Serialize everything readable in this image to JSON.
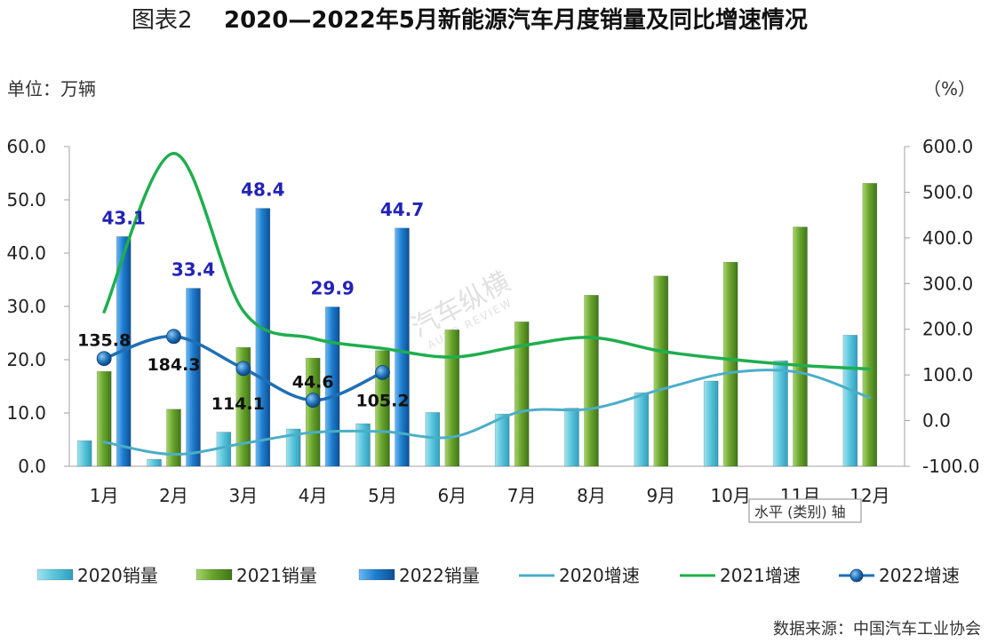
{
  "title": {
    "prefix": "图表2",
    "main": "2020—2022年5月新能源汽车月度销量及同比增速情况"
  },
  "units": {
    "left": "单位：万辆",
    "right": "（%）"
  },
  "source": "数据来源：中国汽车工业协会",
  "watermark": "汽车纵横",
  "watermark_sub": "AUTO REVIEW",
  "tooltip": "水平 (类别) 轴",
  "colors": {
    "sales_2020": "#5cc6dc",
    "sales_2021": "#6aa42e",
    "sales_2022": "#1f7fd0",
    "rate_2020": "#4aaec8",
    "rate_2021": "#1fae4e",
    "rate_2022": "#1f6fb5"
  },
  "chart_data": {
    "type": "bar",
    "categories": [
      "1月",
      "2月",
      "3月",
      "4月",
      "5月",
      "6月",
      "7月",
      "8月",
      "9月",
      "10月",
      "11月",
      "12月"
    ],
    "y_left": {
      "min": 0,
      "max": 60,
      "step": 10,
      "tick_labels": [
        "0.0",
        "10.0",
        "20.0",
        "30.0",
        "40.0",
        "50.0",
        "60.0"
      ]
    },
    "y_right": {
      "min": -100,
      "max": 600,
      "step": 100,
      "tick_labels": [
        "-100.0",
        "0.0",
        "100.0",
        "200.0",
        "300.0",
        "400.0",
        "500.0",
        "600.0"
      ]
    },
    "bar_series": [
      {
        "name": "2020销量",
        "values": [
          4.8,
          1.3,
          6.4,
          7.0,
          8.0,
          10.1,
          9.8,
          10.9,
          13.8,
          16.0,
          19.8,
          24.6
        ]
      },
      {
        "name": "2021销量",
        "values": [
          17.8,
          10.7,
          22.3,
          20.3,
          21.7,
          25.6,
          27.1,
          32.1,
          35.7,
          38.3,
          44.9,
          53.1
        ]
      },
      {
        "name": "2022销量",
        "values": [
          43.1,
          33.4,
          48.4,
          29.9,
          44.7
        ],
        "data_labels": [
          "43.1",
          "33.4",
          "48.4",
          "29.9",
          "44.7"
        ]
      }
    ],
    "line_series": [
      {
        "name": "2020增速",
        "values": [
          -47,
          -74,
          -50,
          -26,
          -24,
          -36,
          20,
          26,
          68,
          105,
          105,
          50
        ]
      },
      {
        "name": "2021增速",
        "values": [
          238,
          585,
          240,
          180,
          158,
          139,
          164,
          182,
          152,
          134,
          121,
          113
        ]
      },
      {
        "name": "2022增速",
        "values": [
          135.8,
          184.3,
          114.1,
          44.6,
          105.2
        ],
        "data_labels": [
          "135.8",
          "184.3",
          "114.1",
          "44.6",
          "105.2"
        ]
      }
    ],
    "legend_position": "bottom",
    "grid": false
  }
}
